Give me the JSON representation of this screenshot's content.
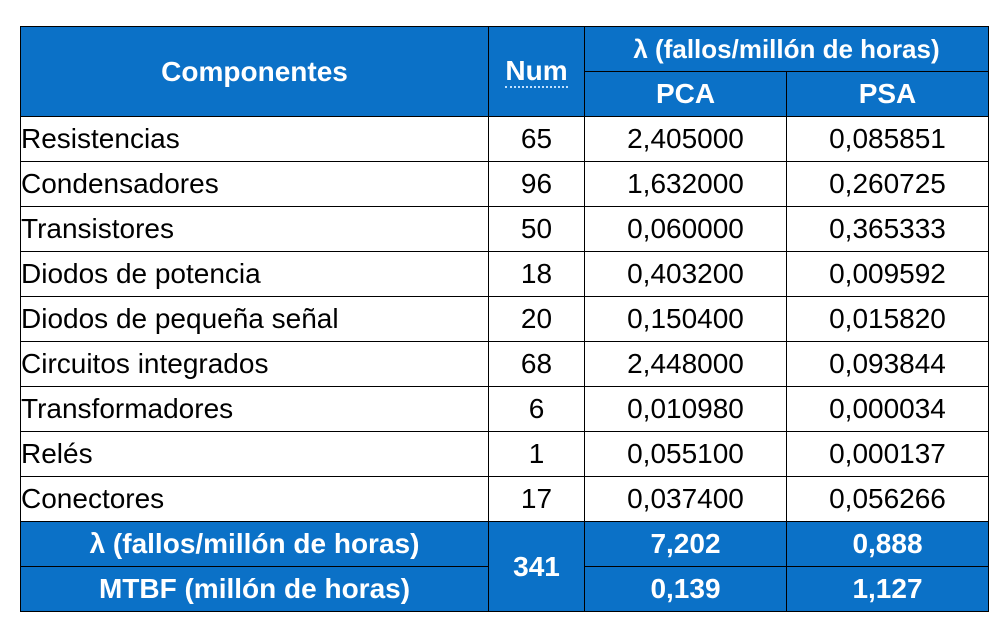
{
  "header": {
    "components": "Componentes",
    "num": "Num",
    "lambda": "λ (fallos/millón de horas)",
    "pca": "PCA",
    "psa": "PSA"
  },
  "rows": [
    {
      "name": "Resistencias",
      "num": "65",
      "pca": "2,405000",
      "psa": "0,085851"
    },
    {
      "name": "Condensadores",
      "num": "96",
      "pca": "1,632000",
      "psa": "0,260725"
    },
    {
      "name": "Transistores",
      "num": "50",
      "pca": "0,060000",
      "psa": "0,365333"
    },
    {
      "name": "Diodos de potencia",
      "num": "18",
      "pca": "0,403200",
      "psa": "0,009592"
    },
    {
      "name": "Diodos de pequeña señal",
      "num": "20",
      "pca": "0,150400",
      "psa": "0,015820"
    },
    {
      "name": "Circuitos integrados",
      "num": "68",
      "pca": "2,448000",
      "psa": "0,093844"
    },
    {
      "name": "Transformadores",
      "num": "6",
      "pca": "0,010980",
      "psa": "0,000034"
    },
    {
      "name": "Relés",
      "num": "1",
      "pca": "0,055100",
      "psa": "0,000137"
    },
    {
      "name": "Conectores",
      "num": "17",
      "pca": "0,037400",
      "psa": "0,056266"
    }
  ],
  "footer": {
    "lambda_label": "λ (fallos/millón de horas)",
    "total_num": "341",
    "lambda_pca": "7,202",
    "lambda_psa": "0,888",
    "mtbf_label": "MTBF (millón de horas)",
    "mtbf_pca": "0,139",
    "mtbf_psa": "1,127"
  },
  "colors": {
    "header_bg": "#0b71c7",
    "header_text": "#ffffff",
    "border": "#000000"
  }
}
